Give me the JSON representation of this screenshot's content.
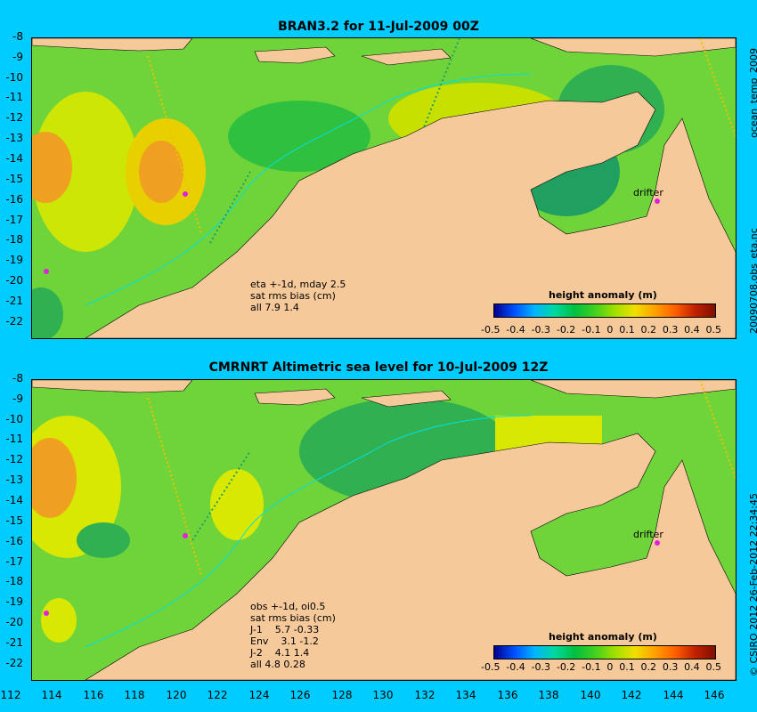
{
  "panels": [
    {
      "title": "BRAN3.2 for 11-Jul-2009 00Z",
      "annotation": "eta +-1d, mday 2.5\nsat rms bias (cm)\nall 7.9 1.4",
      "side_label": "20090708.obs_eta.nc",
      "side_label_top": "ocean_temp_2009",
      "drifter_label": "drifter"
    },
    {
      "title": "CMRNRT Altimetric sea level  for 10-Jul-2009 12Z",
      "annotation": "obs +-1d, oi0.5\nsat rms bias (cm)\nJ-1    5.7 -0.33\nEnv    3.1 -1.2\nJ-2    4.1 1.4\nall 4.8 0.28",
      "side_label": "© CSIRO 2012  26-Feb-2012 22:34:45",
      "drifter_label": "drifter"
    }
  ],
  "axes": {
    "y_ticks": [
      "-8",
      "-9",
      "-10",
      "-11",
      "-12",
      "-13",
      "-14",
      "-15",
      "-16",
      "-17",
      "-18",
      "-19",
      "-20",
      "-21",
      "-22"
    ],
    "x_ticks": [
      "112",
      "114",
      "116",
      "118",
      "120",
      "122",
      "124",
      "126",
      "128",
      "130",
      "132",
      "134",
      "136",
      "138",
      "140",
      "142",
      "144",
      "146"
    ]
  },
  "colorbar": {
    "title": "height anomaly (m)",
    "ticks": [
      "-0.5",
      "-0.4",
      "-0.3",
      "-0.2",
      "-0.1",
      "0",
      "0.1",
      "0.2",
      "0.3",
      "0.4",
      "0.5"
    ],
    "colors": [
      "#00008b",
      "#0050ff",
      "#00b4ff",
      "#00d8a0",
      "#00c040",
      "#40d020",
      "#a0e000",
      "#f0e000",
      "#ffa000",
      "#ff6000",
      "#c02000",
      "#801000"
    ]
  },
  "colors": {
    "background": "#00ccff",
    "land": "#f6c99a",
    "ocean_low": "#1fb35a",
    "ocean_mid": "#7cd83a",
    "ocean_high": "#d8e800",
    "anomaly_hot": "#f0a020",
    "vector": "#e020e0",
    "track": "#c0e000"
  }
}
